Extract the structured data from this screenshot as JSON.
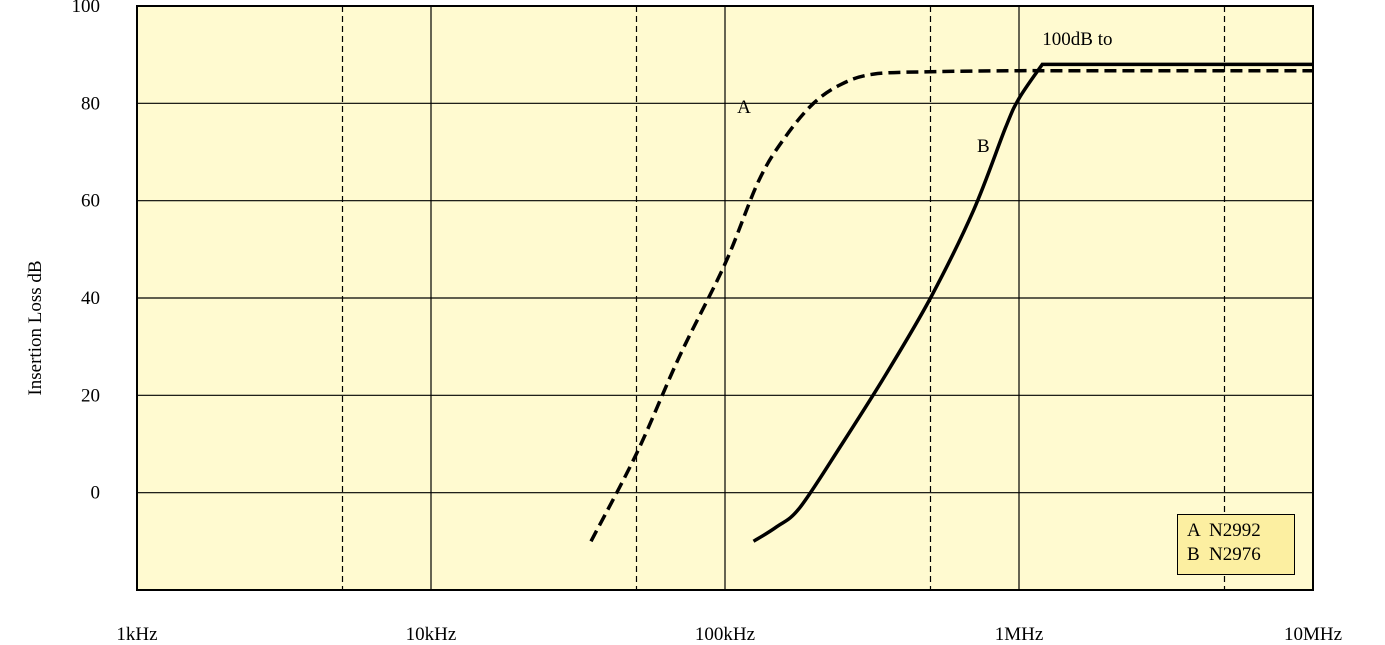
{
  "chart_data": {
    "type": "line",
    "title": "",
    "ylabel": "Insertion Loss dB",
    "xlabel": "",
    "x_scale": "log",
    "x_ticks": [
      {
        "value": 1000,
        "label": "1kHz"
      },
      {
        "value": 10000,
        "label": "10kHz"
      },
      {
        "value": 100000,
        "label": "100kHz"
      },
      {
        "value": 1000000,
        "label": "1MHz"
      },
      {
        "value": 10000000,
        "label": "10MHz"
      }
    ],
    "y_ticks": [
      0,
      20,
      40,
      60,
      80,
      100
    ],
    "ylim": [
      -20,
      100
    ],
    "grid": true,
    "background_color": "#fffad0",
    "legend": {
      "placement": "bottom-right",
      "entries": [
        {
          "key": "A",
          "label": "N2992"
        },
        {
          "key": "B",
          "label": "N2976"
        }
      ],
      "background_color": "#fcefa1"
    },
    "series": [
      {
        "name": "A",
        "style": "dashed",
        "points": [
          [
            35000,
            -10
          ],
          [
            50000,
            8
          ],
          [
            70000,
            28
          ],
          [
            100000,
            47
          ],
          [
            130000,
            64
          ],
          [
            160000,
            73
          ],
          [
            200000,
            80
          ],
          [
            250000,
            84
          ],
          [
            320000,
            86
          ],
          [
            500000,
            86.5
          ],
          [
            1000000,
            86.7
          ],
          [
            1200000,
            86.7
          ],
          [
            10000000,
            86.7
          ]
        ]
      },
      {
        "name": "B",
        "style": "solid",
        "points": [
          [
            125000,
            -10
          ],
          [
            150000,
            -7
          ],
          [
            180000,
            -3
          ],
          [
            250000,
            10
          ],
          [
            350000,
            24
          ],
          [
            500000,
            40
          ],
          [
            700000,
            58
          ],
          [
            900000,
            75
          ],
          [
            1000000,
            81
          ],
          [
            1200000,
            88
          ],
          [
            10000000,
            88
          ]
        ]
      }
    ],
    "annotations": [
      {
        "text": "A",
        "x": 110000,
        "y": 78
      },
      {
        "text": "B",
        "x": 720000,
        "y": 70
      },
      {
        "text": "100dB to",
        "x": 1200000,
        "y": 92
      }
    ]
  }
}
